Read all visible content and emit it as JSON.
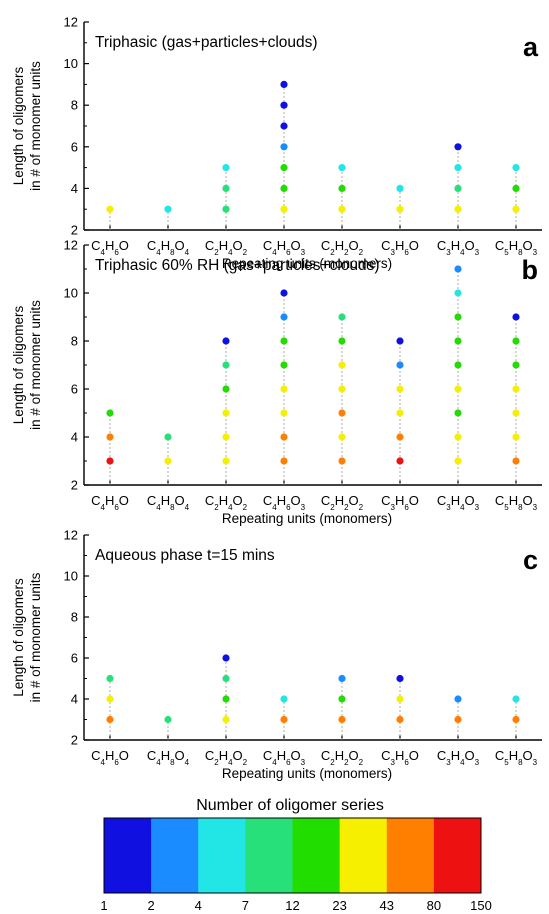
{
  "chart_data": [
    {
      "type": "scatter",
      "panel_letter": "a",
      "annotation": "Triphasic (gas+particles+clouds)",
      "xlabel": "Repeating units (monomers)",
      "ylabel": [
        "Length of oligomers",
        "in # of monomer units"
      ],
      "ylim": [
        2,
        12
      ],
      "yticks": [
        2,
        4,
        6,
        8,
        10,
        12
      ],
      "categories": [
        "C4H6O",
        "C4H8O4",
        "C2H4O2",
        "C4H6O3",
        "C2H2O2",
        "C3H6O",
        "C3H4O3",
        "C5H8O3"
      ],
      "points": [
        {
          "category": "C4H6O",
          "length": 3,
          "color": "#f6f000"
        },
        {
          "category": "C4H8O4",
          "length": 3,
          "color": "#22e6e6"
        },
        {
          "category": "C2H4O2",
          "length": 3,
          "color": "#28e07a"
        },
        {
          "category": "C2H4O2",
          "length": 4,
          "color": "#28e07a"
        },
        {
          "category": "C2H4O2",
          "length": 5,
          "color": "#22e6e6"
        },
        {
          "category": "C4H6O3",
          "length": 3,
          "color": "#f6f000"
        },
        {
          "category": "C4H6O3",
          "length": 4,
          "color": "#22dd00"
        },
        {
          "category": "C4H6O3",
          "length": 5,
          "color": "#22dd00"
        },
        {
          "category": "C4H6O3",
          "length": 6,
          "color": "#1a8cff"
        },
        {
          "category": "C4H6O3",
          "length": 7,
          "color": "#1010e0"
        },
        {
          "category": "C4H6O3",
          "length": 8,
          "color": "#1010e0"
        },
        {
          "category": "C4H6O3",
          "length": 9,
          "color": "#1010e0"
        },
        {
          "category": "C2H2O2",
          "length": 3,
          "color": "#f6f000"
        },
        {
          "category": "C2H2O2",
          "length": 4,
          "color": "#22dd00"
        },
        {
          "category": "C2H2O2",
          "length": 5,
          "color": "#22e6e6"
        },
        {
          "category": "C3H6O",
          "length": 3,
          "color": "#f6f000"
        },
        {
          "category": "C3H6O",
          "length": 4,
          "color": "#22e6e6"
        },
        {
          "category": "C3H4O3",
          "length": 3,
          "color": "#f6f000"
        },
        {
          "category": "C3H4O3",
          "length": 4,
          "color": "#28e07a"
        },
        {
          "category": "C3H4O3",
          "length": 5,
          "color": "#22e6e6"
        },
        {
          "category": "C3H4O3",
          "length": 6,
          "color": "#1010e0"
        },
        {
          "category": "C5H8O3",
          "length": 3,
          "color": "#f6f000"
        },
        {
          "category": "C5H8O3",
          "length": 4,
          "color": "#22dd00"
        },
        {
          "category": "C5H8O3",
          "length": 5,
          "color": "#22e6e6"
        }
      ]
    },
    {
      "type": "scatter",
      "panel_letter": "b",
      "annotation": "Triphasic 60% RH (gas+particles+clouds)",
      "xlabel": "Repeating units (monomers)",
      "ylabel": [
        "Length of oligomers",
        "in # of monomer units"
      ],
      "ylim": [
        2,
        12
      ],
      "yticks": [
        2,
        4,
        6,
        8,
        10,
        12
      ],
      "categories": [
        "C4H6O",
        "C4H8O4",
        "C2H4O2",
        "C4H6O3",
        "C2H2O2",
        "C3H6O",
        "C3H4O3",
        "C5H8O3"
      ],
      "points": [
        {
          "category": "C4H6O",
          "length": 3,
          "color": "#ee1111"
        },
        {
          "category": "C4H6O",
          "length": 4,
          "color": "#ff7f00"
        },
        {
          "category": "C4H6O",
          "length": 5,
          "color": "#22dd00"
        },
        {
          "category": "C4H8O4",
          "length": 3,
          "color": "#f6f000"
        },
        {
          "category": "C4H8O4",
          "length": 4,
          "color": "#28e07a"
        },
        {
          "category": "C2H4O2",
          "length": 3,
          "color": "#f6f000"
        },
        {
          "category": "C2H4O2",
          "length": 4,
          "color": "#f6f000"
        },
        {
          "category": "C2H4O2",
          "length": 5,
          "color": "#f6f000"
        },
        {
          "category": "C2H4O2",
          "length": 6,
          "color": "#22dd00"
        },
        {
          "category": "C2H4O2",
          "length": 7,
          "color": "#28e07a"
        },
        {
          "category": "C2H4O2",
          "length": 8,
          "color": "#1010e0"
        },
        {
          "category": "C4H6O3",
          "length": 3,
          "color": "#ff7f00"
        },
        {
          "category": "C4H6O3",
          "length": 4,
          "color": "#ff7f00"
        },
        {
          "category": "C4H6O3",
          "length": 5,
          "color": "#f6f000"
        },
        {
          "category": "C4H6O3",
          "length": 6,
          "color": "#f6f000"
        },
        {
          "category": "C4H6O3",
          "length": 7,
          "color": "#22dd00"
        },
        {
          "category": "C4H6O3",
          "length": 8,
          "color": "#22dd00"
        },
        {
          "category": "C4H6O3",
          "length": 9,
          "color": "#1a8cff"
        },
        {
          "category": "C4H6O3",
          "length": 10,
          "color": "#1010e0"
        },
        {
          "category": "C2H2O2",
          "length": 3,
          "color": "#ff7f00"
        },
        {
          "category": "C2H2O2",
          "length": 4,
          "color": "#f6f000"
        },
        {
          "category": "C2H2O2",
          "length": 5,
          "color": "#ff7f00"
        },
        {
          "category": "C2H2O2",
          "length": 6,
          "color": "#f6f000"
        },
        {
          "category": "C2H2O2",
          "length": 7,
          "color": "#f6f000"
        },
        {
          "category": "C2H2O2",
          "length": 8,
          "color": "#22dd00"
        },
        {
          "category": "C2H2O2",
          "length": 9,
          "color": "#28e07a"
        },
        {
          "category": "C3H6O",
          "length": 3,
          "color": "#ee1111"
        },
        {
          "category": "C3H6O",
          "length": 4,
          "color": "#ff7f00"
        },
        {
          "category": "C3H6O",
          "length": 5,
          "color": "#f6f000"
        },
        {
          "category": "C3H6O",
          "length": 6,
          "color": "#f6f000"
        },
        {
          "category": "C3H6O",
          "length": 7,
          "color": "#1a8cff"
        },
        {
          "category": "C3H6O",
          "length": 8,
          "color": "#1010e0"
        },
        {
          "category": "C3H4O3",
          "length": 3,
          "color": "#f6f000"
        },
        {
          "category": "C3H4O3",
          "length": 4,
          "color": "#f6f000"
        },
        {
          "category": "C3H4O3",
          "length": 5,
          "color": "#22dd00"
        },
        {
          "category": "C3H4O3",
          "length": 6,
          "color": "#f6f000"
        },
        {
          "category": "C3H4O3",
          "length": 7,
          "color": "#22dd00"
        },
        {
          "category": "C3H4O3",
          "length": 8,
          "color": "#22dd00"
        },
        {
          "category": "C3H4O3",
          "length": 9,
          "color": "#22dd00"
        },
        {
          "category": "C3H4O3",
          "length": 10,
          "color": "#22e6e6"
        },
        {
          "category": "C3H4O3",
          "length": 11,
          "color": "#1a8cff"
        },
        {
          "category": "C5H8O3",
          "length": 3,
          "color": "#ff7f00"
        },
        {
          "category": "C5H8O3",
          "length": 4,
          "color": "#f6f000"
        },
        {
          "category": "C5H8O3",
          "length": 5,
          "color": "#f6f000"
        },
        {
          "category": "C5H8O3",
          "length": 6,
          "color": "#f6f000"
        },
        {
          "category": "C5H8O3",
          "length": 7,
          "color": "#22dd00"
        },
        {
          "category": "C5H8O3",
          "length": 8,
          "color": "#22dd00"
        },
        {
          "category": "C5H8O3",
          "length": 9,
          "color": "#1010e0"
        }
      ]
    },
    {
      "type": "scatter",
      "panel_letter": "c",
      "annotation": "Aqueous phase t=15 mins",
      "xlabel": "Repeating units (monomers)",
      "ylabel": [
        "Length of oligomers",
        "in # of monomer units"
      ],
      "ylim": [
        2,
        12
      ],
      "yticks": [
        2,
        4,
        6,
        8,
        10,
        12
      ],
      "categories": [
        "C4H6O",
        "C4H8O4",
        "C2H4O2",
        "C4H6O3",
        "C2H2O2",
        "C3H6O",
        "C3H4O3",
        "C5H8O3"
      ],
      "points": [
        {
          "category": "C4H6O",
          "length": 3,
          "color": "#ff7f00"
        },
        {
          "category": "C4H6O",
          "length": 4,
          "color": "#f6f000"
        },
        {
          "category": "C4H6O",
          "length": 5,
          "color": "#28e07a"
        },
        {
          "category": "C4H8O4",
          "length": 3,
          "color": "#28e07a"
        },
        {
          "category": "C2H4O2",
          "length": 3,
          "color": "#f6f000"
        },
        {
          "category": "C2H4O2",
          "length": 4,
          "color": "#22dd00"
        },
        {
          "category": "C2H4O2",
          "length": 5,
          "color": "#28e07a"
        },
        {
          "category": "C2H4O2",
          "length": 6,
          "color": "#1010e0"
        },
        {
          "category": "C4H6O3",
          "length": 3,
          "color": "#ff7f00"
        },
        {
          "category": "C4H6O3",
          "length": 4,
          "color": "#22e6e6"
        },
        {
          "category": "C2H2O2",
          "length": 3,
          "color": "#ff7f00"
        },
        {
          "category": "C2H2O2",
          "length": 4,
          "color": "#22dd00"
        },
        {
          "category": "C2H2O2",
          "length": 5,
          "color": "#1a8cff"
        },
        {
          "category": "C3H6O",
          "length": 3,
          "color": "#ff7f00"
        },
        {
          "category": "C3H6O",
          "length": 4,
          "color": "#f6f000"
        },
        {
          "category": "C3H6O",
          "length": 5,
          "color": "#1010e0"
        },
        {
          "category": "C3H4O3",
          "length": 3,
          "color": "#ff7f00"
        },
        {
          "category": "C3H4O3",
          "length": 4,
          "color": "#1a8cff"
        },
        {
          "category": "C5H8O3",
          "length": 3,
          "color": "#ff7f00"
        },
        {
          "category": "C5H8O3",
          "length": 4,
          "color": "#22e6e6"
        }
      ]
    }
  ],
  "colorbar": {
    "title": "Number of oligomer series",
    "colors": [
      "#1010e0",
      "#1a8cff",
      "#22e6e6",
      "#28e07a",
      "#22dd00",
      "#f6f000",
      "#ff7f00",
      "#ee1111"
    ],
    "tick_labels": [
      "1",
      "2",
      "4",
      "7",
      "12",
      "23",
      "43",
      "80",
      "150"
    ]
  }
}
